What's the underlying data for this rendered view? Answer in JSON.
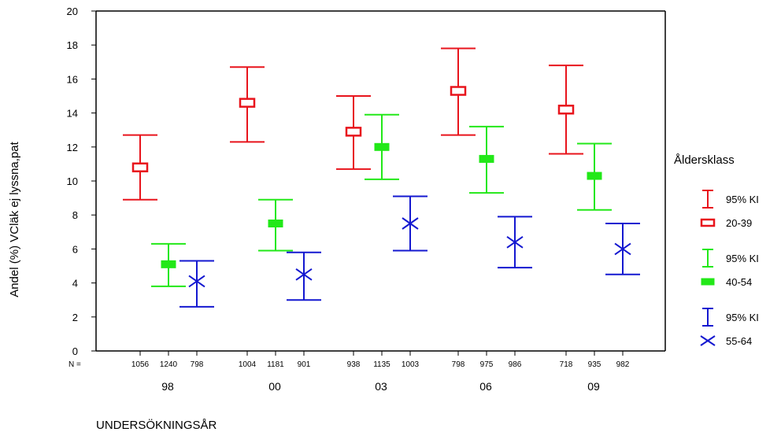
{
  "chart_data": {
    "type": "error-bar",
    "ylabel": "Andel (%) VCläk ej lyssna,pat",
    "xlabel": "UNDERSÖKNINGSÅR",
    "ylim": [
      0,
      20
    ],
    "yticks": [
      0,
      2,
      4,
      6,
      8,
      10,
      12,
      14,
      16,
      18,
      20
    ],
    "n_label": "N =",
    "categories": [
      "98",
      "00",
      "03",
      "06",
      "09"
    ],
    "legend_title": "Åldersklass",
    "series": [
      {
        "name": "20-39",
        "ci_label": "95% KI",
        "color": "#e8141c",
        "marker": "open-square",
        "mean": [
          10.8,
          14.6,
          12.9,
          15.3,
          14.2
        ],
        "low": [
          8.9,
          12.3,
          10.7,
          12.7,
          11.6
        ],
        "high": [
          12.7,
          16.7,
          15.0,
          17.8,
          16.8
        ],
        "n": [
          "1056",
          "1004",
          "938",
          "798",
          "718"
        ]
      },
      {
        "name": "40-54",
        "ci_label": "95% KI",
        "color": "#22e818",
        "marker": "filled-rect",
        "mean": [
          5.1,
          7.5,
          12.0,
          11.3,
          10.3
        ],
        "low": [
          3.8,
          5.9,
          10.1,
          9.3,
          8.3
        ],
        "high": [
          6.3,
          8.9,
          13.9,
          13.2,
          12.2
        ],
        "n": [
          "1240",
          "1181",
          "1135",
          "975",
          "935"
        ]
      },
      {
        "name": "55-64",
        "ci_label": "95% KI",
        "color": "#1418d0",
        "marker": "cross",
        "mean": [
          4.1,
          4.5,
          7.5,
          6.4,
          6.0
        ],
        "low": [
          2.6,
          3.0,
          5.9,
          4.9,
          4.5
        ],
        "high": [
          5.3,
          5.8,
          9.1,
          7.9,
          7.5
        ],
        "n": [
          "798",
          "901",
          "1003",
          "986",
          "982"
        ]
      }
    ]
  }
}
